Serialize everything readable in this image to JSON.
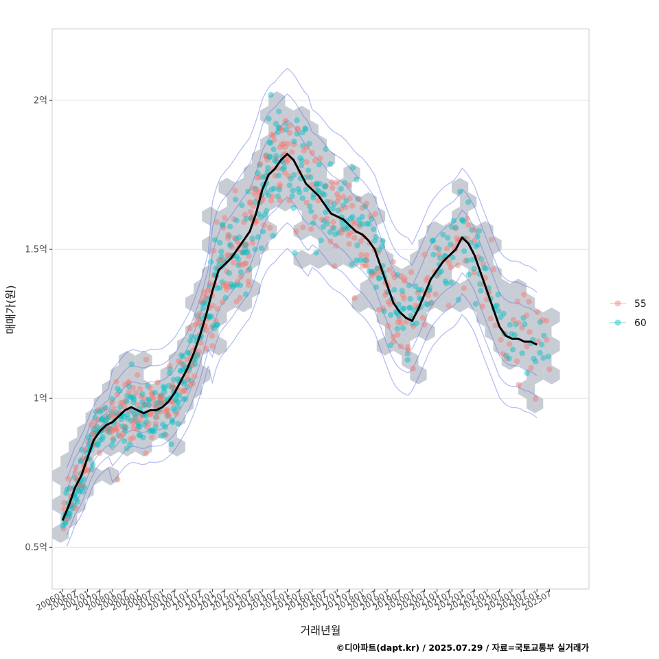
{
  "chart_data": {
    "type": "scatter",
    "xlabel": "거래년월",
    "ylabel": "매매가(원)",
    "caption": "©디아파트(dapt.kr) / 2025.07.29 / 자료=국토교통부 실거래가",
    "y_unit": "억원",
    "ylim": [
      0.36,
      2.24
    ],
    "xlim": [
      "2005-08",
      "2027-02"
    ],
    "y_ticks": [
      {
        "value": 0.5,
        "label": "0.5억"
      },
      {
        "value": 1.0,
        "label": "1억"
      },
      {
        "value": 1.5,
        "label": "1.5억"
      },
      {
        "value": 2.0,
        "label": "2억"
      }
    ],
    "x_ticks": [
      "2006-01",
      "2006-07",
      "2007-01",
      "2007-07",
      "2008-01",
      "2008-07",
      "2009-01",
      "2009-07",
      "2010-01",
      "2010-07",
      "2011-01",
      "2011-07",
      "2012-01",
      "2012-07",
      "2013-01",
      "2013-07",
      "2014-01",
      "2014-07",
      "2015-01",
      "2015-07",
      "2016-01",
      "2016-07",
      "2017-01",
      "2017-07",
      "2018-01",
      "2018-07",
      "2019-01",
      "2019-07",
      "2020-01",
      "2020-07",
      "2021-01",
      "2021-07",
      "2022-01",
      "2022-07",
      "2023-01",
      "2023-07",
      "2024-01",
      "2024-07",
      "2025-01",
      "2025-07"
    ],
    "x_tick_labels": [
      "200601",
      "200607",
      "200701",
      "200707",
      "200801",
      "200807",
      "200901",
      "200907",
      "201001",
      "201007",
      "201101",
      "201107",
      "201201",
      "201207",
      "201301",
      "201307",
      "201401",
      "201407",
      "201501",
      "201507",
      "201601",
      "201607",
      "201701",
      "201707",
      "201801",
      "201807",
      "201901",
      "201907",
      "202001",
      "202007",
      "202101",
      "202107",
      "202201",
      "202207",
      "202301",
      "202307",
      "202401",
      "202407",
      "202501",
      "202507"
    ],
    "grid": true,
    "legend_position": "right",
    "series": [
      {
        "name": "55",
        "color": "#F8766D"
      },
      {
        "name": "60",
        "color": "#00BFC4"
      }
    ],
    "trend_line": {
      "color": "#000000",
      "points": [
        [
          "2006-01",
          0.59
        ],
        [
          "2006-04",
          0.64
        ],
        [
          "2006-07",
          0.7
        ],
        [
          "2006-10",
          0.74
        ],
        [
          "2007-01",
          0.8
        ],
        [
          "2007-04",
          0.86
        ],
        [
          "2007-07",
          0.89
        ],
        [
          "2007-10",
          0.91
        ],
        [
          "2008-01",
          0.92
        ],
        [
          "2008-04",
          0.94
        ],
        [
          "2008-07",
          0.96
        ],
        [
          "2008-10",
          0.97
        ],
        [
          "2009-01",
          0.96
        ],
        [
          "2009-04",
          0.95
        ],
        [
          "2009-07",
          0.96
        ],
        [
          "2009-10",
          0.96
        ],
        [
          "2010-01",
          0.97
        ],
        [
          "2010-04",
          0.99
        ],
        [
          "2010-07",
          1.02
        ],
        [
          "2010-10",
          1.06
        ],
        [
          "2011-01",
          1.1
        ],
        [
          "2011-04",
          1.15
        ],
        [
          "2011-07",
          1.21
        ],
        [
          "2011-10",
          1.28
        ],
        [
          "2012-01",
          1.36
        ],
        [
          "2012-04",
          1.43
        ],
        [
          "2012-07",
          1.45
        ],
        [
          "2012-10",
          1.47
        ],
        [
          "2013-01",
          1.5
        ],
        [
          "2013-04",
          1.53
        ],
        [
          "2013-07",
          1.56
        ],
        [
          "2013-10",
          1.62
        ],
        [
          "2014-01",
          1.7
        ],
        [
          "2014-04",
          1.75
        ],
        [
          "2014-07",
          1.77
        ],
        [
          "2014-10",
          1.8
        ],
        [
          "2015-01",
          1.82
        ],
        [
          "2015-04",
          1.8
        ],
        [
          "2015-07",
          1.76
        ],
        [
          "2015-10",
          1.72
        ],
        [
          "2016-01",
          1.7
        ],
        [
          "2016-04",
          1.68
        ],
        [
          "2016-07",
          1.65
        ],
        [
          "2016-10",
          1.62
        ],
        [
          "2017-01",
          1.61
        ],
        [
          "2017-04",
          1.6
        ],
        [
          "2017-07",
          1.58
        ],
        [
          "2017-10",
          1.56
        ],
        [
          "2018-01",
          1.55
        ],
        [
          "2018-04",
          1.53
        ],
        [
          "2018-07",
          1.5
        ],
        [
          "2018-10",
          1.44
        ],
        [
          "2019-01",
          1.38
        ],
        [
          "2019-04",
          1.32
        ],
        [
          "2019-07",
          1.29
        ],
        [
          "2019-10",
          1.27
        ],
        [
          "2020-01",
          1.26
        ],
        [
          "2020-04",
          1.3
        ],
        [
          "2020-07",
          1.35
        ],
        [
          "2020-10",
          1.4
        ],
        [
          "2021-01",
          1.43
        ],
        [
          "2021-04",
          1.46
        ],
        [
          "2021-07",
          1.48
        ],
        [
          "2021-10",
          1.5
        ],
        [
          "2022-01",
          1.54
        ],
        [
          "2022-04",
          1.52
        ],
        [
          "2022-07",
          1.48
        ],
        [
          "2022-10",
          1.42
        ],
        [
          "2023-01",
          1.36
        ],
        [
          "2023-04",
          1.3
        ],
        [
          "2023-07",
          1.24
        ],
        [
          "2023-10",
          1.21
        ],
        [
          "2024-01",
          1.2
        ],
        [
          "2024-04",
          1.2
        ],
        [
          "2024-07",
          1.19
        ],
        [
          "2024-10",
          1.19
        ],
        [
          "2025-01",
          1.18
        ]
      ]
    },
    "hexbin": {
      "fill": "#BEC3CC",
      "opacity": 0.85
    },
    "contours": {
      "color": "#5A6EE0",
      "opacity": 0.45
    }
  }
}
